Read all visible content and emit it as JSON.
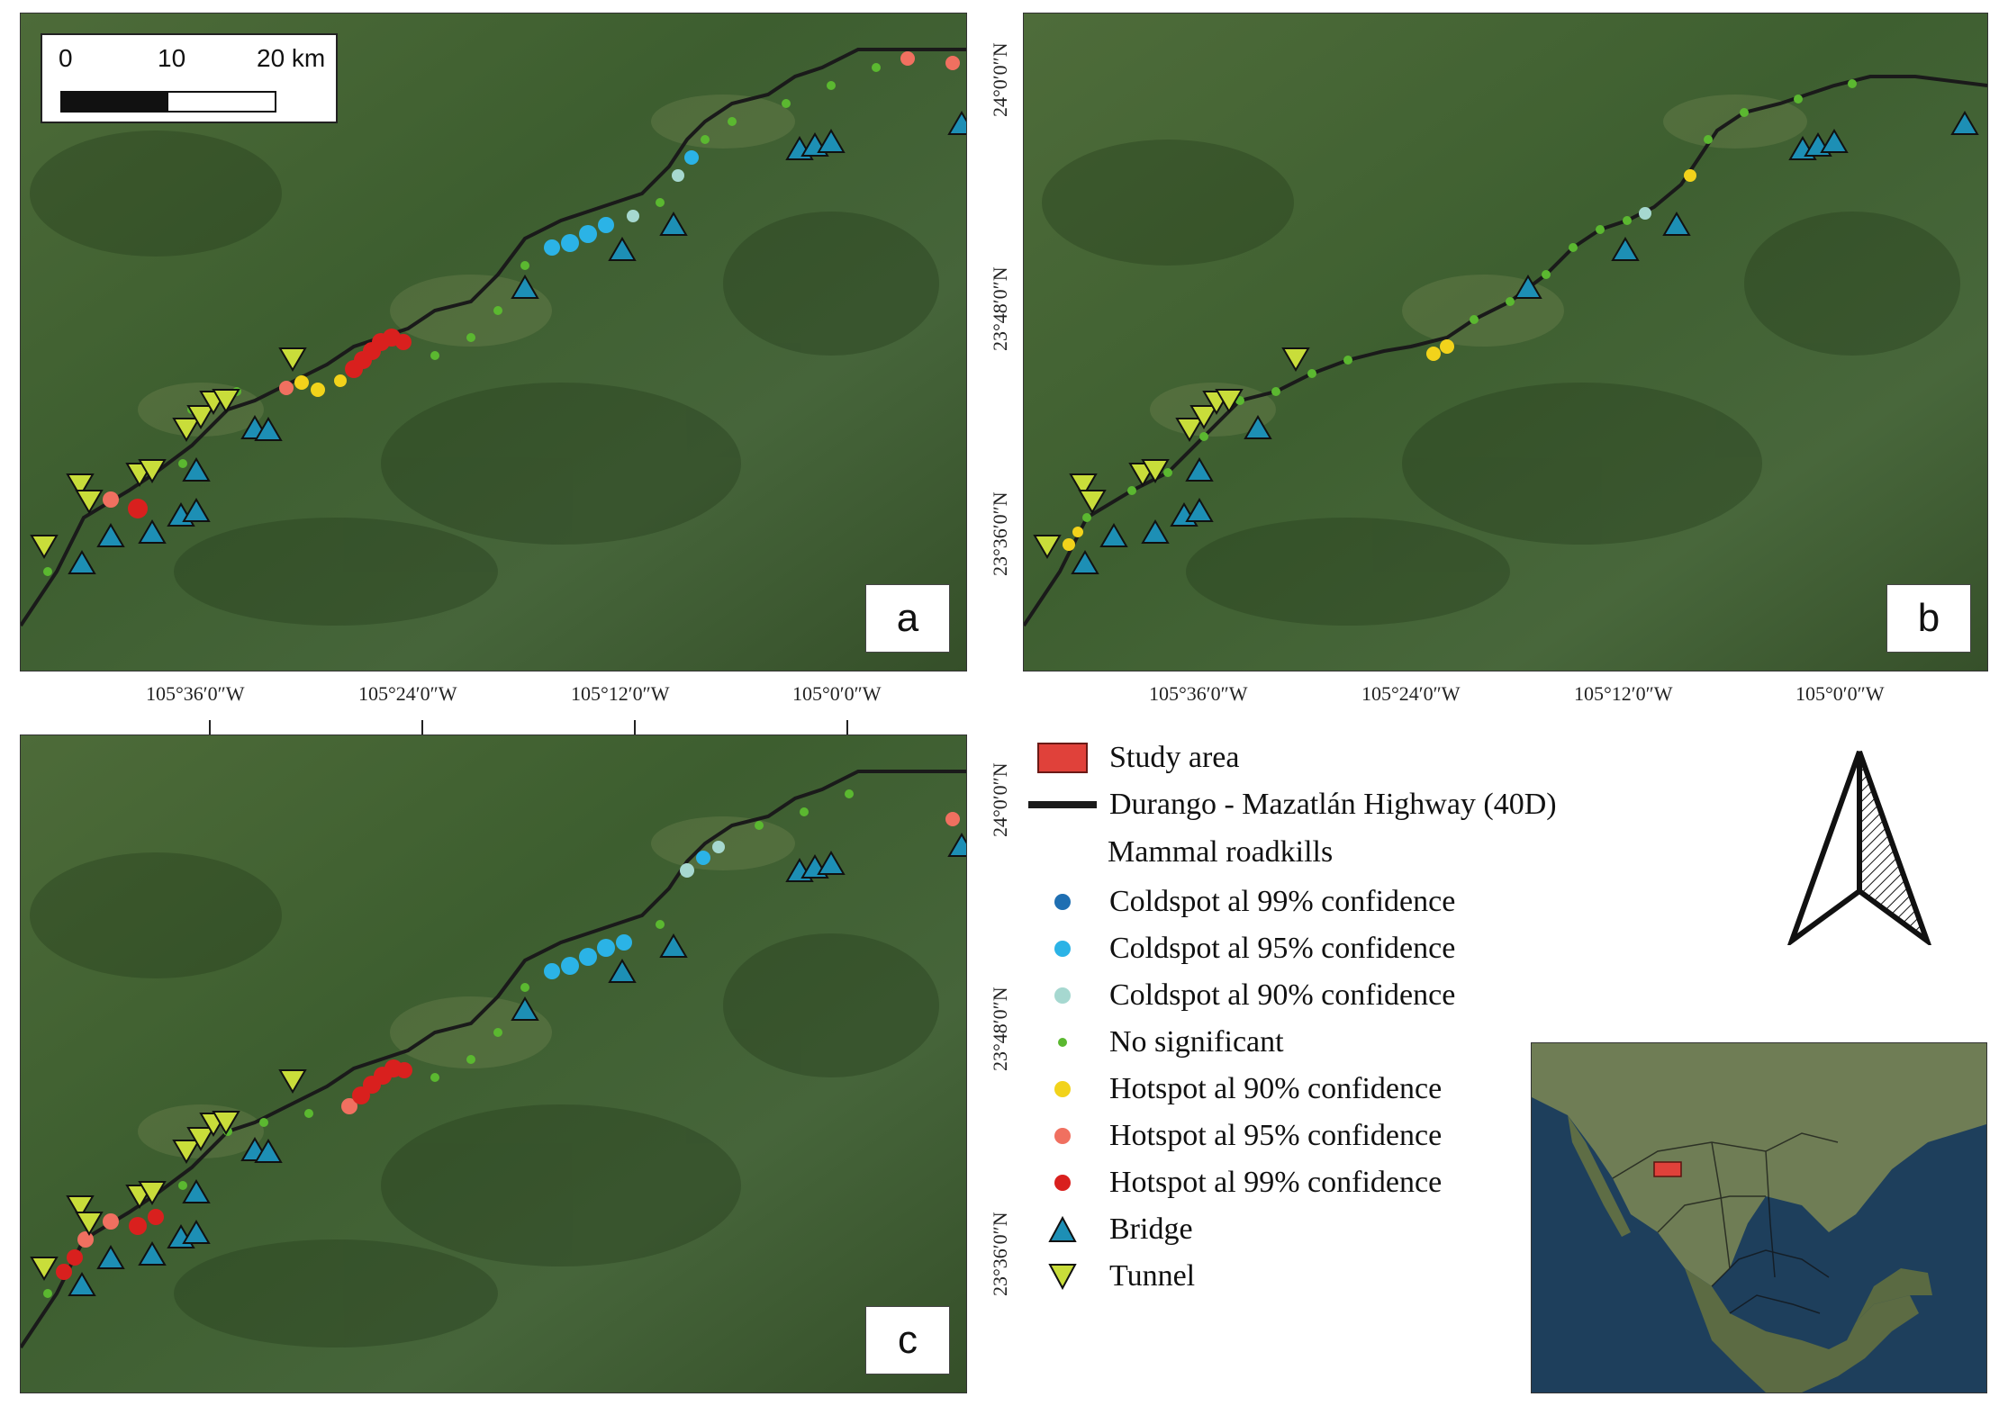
{
  "panels": [
    {
      "id": "a",
      "label": "a"
    },
    {
      "id": "b",
      "label": "b"
    },
    {
      "id": "c",
      "label": "c"
    }
  ],
  "scale_bar": {
    "labels": [
      "0",
      "10",
      "20 km"
    ]
  },
  "lon_labels": [
    "105°36′0″W",
    "105°24′0″W",
    "105°12′0″W",
    "105°0′0″W"
  ],
  "lat_labels": [
    "24°0′0″N",
    "23°48′0″N",
    "23°36′0″N"
  ],
  "legend": {
    "study_area": "Study area",
    "highway": "Durango - Mazatlán Highway (40D)",
    "heading": "Mammal roadkills",
    "classes": [
      {
        "label": "Coldspot al 99% confidence",
        "color": "#1f6fb2"
      },
      {
        "label": "Coldspot al 95% confidence",
        "color": "#2bb3e6"
      },
      {
        "label": "Coldspot al 90% confidence",
        "color": "#a6d8d0"
      },
      {
        "label": "No significant",
        "color": "#5bb830"
      },
      {
        "label": "Hotspot al 90% confidence",
        "color": "#f2d31b"
      },
      {
        "label": "Hotspot al 95% confidence",
        "color": "#f07060"
      },
      {
        "label": "Hotspot al 99% confidence",
        "color": "#d9201e"
      }
    ],
    "bridge": "Bridge",
    "tunnel": "Tunnel"
  },
  "colors": {
    "bridge": "#1d8fb5",
    "tunnel": "#c9dd3a",
    "highway": "#1a1a1a",
    "study_area": "#e0413a"
  }
}
